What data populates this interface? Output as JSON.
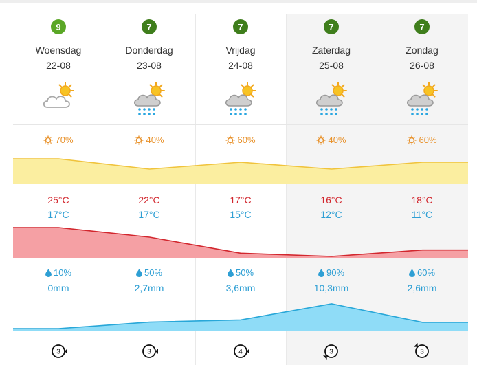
{
  "days": [
    {
      "rating": "9",
      "name": "Woensdag",
      "date": "22-08",
      "weather_icon": "partly-cloudy-icon",
      "sun": "70%",
      "tmax": "25°C",
      "tmin": "17°C",
      "rain_chance": "10%",
      "rain_amount": "0mm",
      "wind": "3",
      "wind_direction": "west"
    },
    {
      "rating": "7",
      "name": "Donderdag",
      "date": "23-08",
      "weather_icon": "sun-cloud-rain-icon",
      "sun": "40%",
      "tmax": "22°C",
      "tmin": "17°C",
      "rain_chance": "50%",
      "rain_amount": "2,7mm",
      "wind": "3",
      "wind_direction": "west"
    },
    {
      "rating": "7",
      "name": "Vrijdag",
      "date": "24-08",
      "weather_icon": "sun-cloud-rain-icon",
      "sun": "60%",
      "tmax": "17°C",
      "tmin": "15°C",
      "rain_chance": "50%",
      "rain_amount": "3,6mm",
      "wind": "4",
      "wind_direction": "west"
    },
    {
      "rating": "7",
      "name": "Zaterdag",
      "date": "25-08",
      "weather_icon": "sun-cloud-rain-icon",
      "sun": "40%",
      "tmax": "16°C",
      "tmin": "12°C",
      "rain_chance": "90%",
      "rain_amount": "10,3mm",
      "wind": "3",
      "wind_direction": "south-west"
    },
    {
      "rating": "7",
      "name": "Zondag",
      "date": "26-08",
      "weather_icon": "sun-cloud-rain-icon",
      "sun": "60%",
      "tmax": "18°C",
      "tmin": "11°C",
      "rain_chance": "60%",
      "rain_amount": "2,6mm",
      "wind": "3",
      "wind_direction": "north-west"
    }
  ],
  "colors": {
    "rating_green": "#3f7e1c",
    "rating_light_green": "#5aa726",
    "sun_text": "#e8912a",
    "sun_fill": "#fbeea0",
    "sun_line": "#f0c33c",
    "temp_max": "#d2272e",
    "temp_min": "#2e9fd4",
    "temp_fill": "#f5a0a4",
    "rain_fill": "#8fdcf7",
    "rain_line": "#28a7d8"
  },
  "graph_series": {
    "sun_percent": [
      70,
      40,
      60,
      40,
      60
    ],
    "temp_max_c": [
      25,
      22,
      17,
      16,
      18
    ],
    "rain_mm": [
      0,
      2.7,
      3.6,
      10.3,
      2.6
    ]
  }
}
